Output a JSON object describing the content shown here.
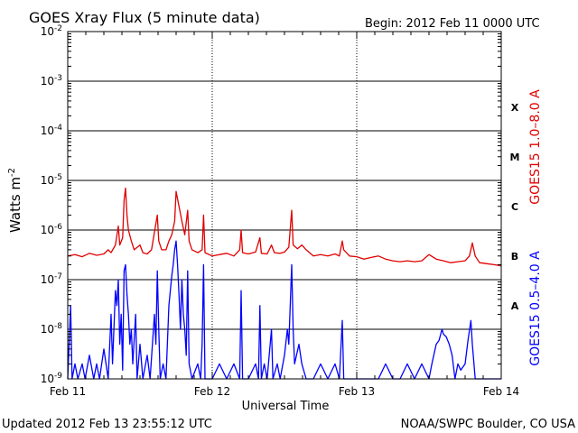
{
  "chart_data": {
    "type": "line",
    "title": "GOES Xray Flux (5 minute data)",
    "begin_label": "Begin:  2012 Feb 11 0000 UTC",
    "xlabel": "Universal Time",
    "ylabel_base": "Watts m",
    "ylabel_exp": "-2",
    "x_ticks": [
      "Feb 11",
      "Feb 12",
      "Feb 13",
      "Feb 14"
    ],
    "x_range_days": [
      0,
      3
    ],
    "ylim": [
      1e-09,
      0.01
    ],
    "y_scale": "log",
    "y_ticks": [
      {
        "base": "10",
        "exp": "-2",
        "value": 0.01
      },
      {
        "base": "10",
        "exp": "-3",
        "value": 0.001
      },
      {
        "base": "10",
        "exp": "-4",
        "value": 0.0001
      },
      {
        "base": "10",
        "exp": "-5",
        "value": 1e-05
      },
      {
        "base": "10",
        "exp": "-6",
        "value": 1e-06
      },
      {
        "base": "10",
        "exp": "-7",
        "value": 1e-07
      },
      {
        "base": "10",
        "exp": "-8",
        "value": 1e-08
      },
      {
        "base": "10",
        "exp": "-9",
        "value": 1e-09
      }
    ],
    "flare_classes": [
      {
        "label": "X",
        "value": 0.0003
      },
      {
        "label": "M",
        "value": 3e-05
      },
      {
        "label": "C",
        "value": 3e-06
      },
      {
        "label": "B",
        "value": 3e-07
      },
      {
        "label": "A",
        "value": 3e-08
      }
    ],
    "series": [
      {
        "name": "GOES15 1.0–8.0 A",
        "color": "#e00000",
        "points": [
          [
            0,
            3e-07
          ],
          [
            0.05,
            3.2e-07
          ],
          [
            0.1,
            2.9e-07
          ],
          [
            0.15,
            3.4e-07
          ],
          [
            0.2,
            3.1e-07
          ],
          [
            0.25,
            3.3e-07
          ],
          [
            0.28,
            4e-07
          ],
          [
            0.3,
            3.5e-07
          ],
          [
            0.33,
            5e-07
          ],
          [
            0.35,
            1.2e-06
          ],
          [
            0.36,
            5e-07
          ],
          [
            0.38,
            7e-07
          ],
          [
            0.39,
            4e-06
          ],
          [
            0.4,
            7e-06
          ],
          [
            0.41,
            2e-06
          ],
          [
            0.42,
            1e-06
          ],
          [
            0.44,
            6e-07
          ],
          [
            0.46,
            4e-07
          ],
          [
            0.5,
            5e-07
          ],
          [
            0.52,
            3.5e-07
          ],
          [
            0.55,
            3.3e-07
          ],
          [
            0.58,
            4e-07
          ],
          [
            0.6,
            9e-07
          ],
          [
            0.62,
            2e-06
          ],
          [
            0.63,
            6e-07
          ],
          [
            0.65,
            4e-07
          ],
          [
            0.68,
            4e-07
          ],
          [
            0.7,
            6e-07
          ],
          [
            0.72,
            8e-07
          ],
          [
            0.74,
            1.5e-06
          ],
          [
            0.75,
            6e-06
          ],
          [
            0.77,
            3e-06
          ],
          [
            0.79,
            1.5e-06
          ],
          [
            0.81,
            8e-07
          ],
          [
            0.83,
            2.5e-06
          ],
          [
            0.84,
            6e-07
          ],
          [
            0.86,
            4e-07
          ],
          [
            0.9,
            3.5e-07
          ],
          [
            0.93,
            4e-07
          ],
          [
            0.94,
            2e-06
          ],
          [
            0.95,
            3.5e-07
          ],
          [
            1.0,
            3e-07
          ],
          [
            1.05,
            3.2e-07
          ],
          [
            1.1,
            3.4e-07
          ],
          [
            1.15,
            3e-07
          ],
          [
            1.19,
            4e-07
          ],
          [
            1.2,
            1e-06
          ],
          [
            1.21,
            3.5e-07
          ],
          [
            1.25,
            3.3e-07
          ],
          [
            1.3,
            3.6e-07
          ],
          [
            1.33,
            7e-07
          ],
          [
            1.34,
            3.4e-07
          ],
          [
            1.38,
            3.3e-07
          ],
          [
            1.41,
            5e-07
          ],
          [
            1.43,
            3.5e-07
          ],
          [
            1.47,
            3.4e-07
          ],
          [
            1.5,
            3.6e-07
          ],
          [
            1.53,
            4.5e-07
          ],
          [
            1.55,
            2.5e-06
          ],
          [
            1.56,
            5e-07
          ],
          [
            1.59,
            4.2e-07
          ],
          [
            1.62,
            5e-07
          ],
          [
            1.65,
            4e-07
          ],
          [
            1.7,
            3e-07
          ],
          [
            1.75,
            3.2e-07
          ],
          [
            1.8,
            3e-07
          ],
          [
            1.85,
            3.3e-07
          ],
          [
            1.88,
            3e-07
          ],
          [
            1.9,
            6e-07
          ],
          [
            1.91,
            4e-07
          ],
          [
            1.95,
            3e-07
          ],
          [
            2.0,
            2.9e-07
          ],
          [
            2.05,
            2.6e-07
          ],
          [
            2.1,
            2.8e-07
          ],
          [
            2.15,
            3e-07
          ],
          [
            2.2,
            2.6e-07
          ],
          [
            2.25,
            2.4e-07
          ],
          [
            2.3,
            2.3e-07
          ],
          [
            2.35,
            2.4e-07
          ],
          [
            2.4,
            2.3e-07
          ],
          [
            2.45,
            2.4e-07
          ],
          [
            2.5,
            3.2e-07
          ],
          [
            2.55,
            2.6e-07
          ],
          [
            2.6,
            2.4e-07
          ],
          [
            2.65,
            2.2e-07
          ],
          [
            2.7,
            2.3e-07
          ],
          [
            2.75,
            2.4e-07
          ],
          [
            2.78,
            3e-07
          ],
          [
            2.8,
            5.5e-07
          ],
          [
            2.82,
            3e-07
          ],
          [
            2.85,
            2.2e-07
          ],
          [
            2.9,
            2.1e-07
          ],
          [
            2.95,
            2e-07
          ],
          [
            3.0,
            1.9e-07
          ]
        ]
      },
      {
        "name": "GOES15 0.5–4.0 A",
        "color": "#0000ff",
        "points": [
          [
            0,
            1e-09
          ],
          [
            0.02,
            3e-08
          ],
          [
            0.03,
            1e-09
          ],
          [
            0.05,
            2e-09
          ],
          [
            0.07,
            1e-09
          ],
          [
            0.1,
            2e-09
          ],
          [
            0.12,
            1e-09
          ],
          [
            0.15,
            3e-09
          ],
          [
            0.18,
            1e-09
          ],
          [
            0.2,
            2e-09
          ],
          [
            0.22,
            1e-09
          ],
          [
            0.25,
            4e-09
          ],
          [
            0.28,
            1e-09
          ],
          [
            0.3,
            2e-08
          ],
          [
            0.31,
            2e-09
          ],
          [
            0.33,
            6e-08
          ],
          [
            0.34,
            3e-08
          ],
          [
            0.35,
            1e-07
          ],
          [
            0.36,
            5e-09
          ],
          [
            0.37,
            2e-08
          ],
          [
            0.38,
            1.5e-09
          ],
          [
            0.39,
            1.5e-07
          ],
          [
            0.4,
            2e-07
          ],
          [
            0.41,
            5e-08
          ],
          [
            0.42,
            2e-08
          ],
          [
            0.43,
            5e-09
          ],
          [
            0.44,
            1e-08
          ],
          [
            0.45,
            2e-09
          ],
          [
            0.47,
            2e-08
          ],
          [
            0.48,
            1e-09
          ],
          [
            0.5,
            5e-09
          ],
          [
            0.52,
            1e-09
          ],
          [
            0.55,
            3e-09
          ],
          [
            0.57,
            1e-09
          ],
          [
            0.6,
            2e-08
          ],
          [
            0.61,
            5e-09
          ],
          [
            0.62,
            1.5e-07
          ],
          [
            0.63,
            1e-08
          ],
          [
            0.64,
            1e-09
          ],
          [
            0.66,
            2e-09
          ],
          [
            0.68,
            1e-09
          ],
          [
            0.7,
            3e-08
          ],
          [
            0.71,
            6e-08
          ],
          [
            0.72,
            1.2e-07
          ],
          [
            0.73,
            2e-07
          ],
          [
            0.74,
            4e-07
          ],
          [
            0.75,
            6e-07
          ],
          [
            0.76,
            2e-07
          ],
          [
            0.77,
            5e-08
          ],
          [
            0.78,
            1e-08
          ],
          [
            0.79,
            1e-07
          ],
          [
            0.8,
            2e-08
          ],
          [
            0.81,
            1e-08
          ],
          [
            0.82,
            3e-09
          ],
          [
            0.83,
            1.5e-07
          ],
          [
            0.84,
            2e-09
          ],
          [
            0.86,
            1e-09
          ],
          [
            0.9,
            2e-09
          ],
          [
            0.92,
            1e-09
          ],
          [
            0.93,
            5e-09
          ],
          [
            0.94,
            2e-07
          ],
          [
            0.95,
            1e-09
          ],
          [
            1.0,
            1e-09
          ],
          [
            1.05,
            2e-09
          ],
          [
            1.1,
            1e-09
          ],
          [
            1.15,
            2e-09
          ],
          [
            1.19,
            1e-09
          ],
          [
            1.2,
            6e-08
          ],
          [
            1.21,
            1e-09
          ],
          [
            1.25,
            1e-09
          ],
          [
            1.3,
            2e-09
          ],
          [
            1.32,
            1e-09
          ],
          [
            1.33,
            3e-08
          ],
          [
            1.34,
            1e-09
          ],
          [
            1.36,
            2e-09
          ],
          [
            1.38,
            1e-09
          ],
          [
            1.41,
            1e-08
          ],
          [
            1.42,
            1e-09
          ],
          [
            1.45,
            2e-09
          ],
          [
            1.47,
            1e-09
          ],
          [
            1.5,
            3e-09
          ],
          [
            1.52,
            1e-08
          ],
          [
            1.53,
            5e-09
          ],
          [
            1.55,
            2e-07
          ],
          [
            1.56,
            1e-08
          ],
          [
            1.57,
            2e-09
          ],
          [
            1.6,
            5e-09
          ],
          [
            1.62,
            2e-09
          ],
          [
            1.65,
            1e-09
          ],
          [
            1.7,
            1e-09
          ],
          [
            1.75,
            2e-09
          ],
          [
            1.8,
            1e-09
          ],
          [
            1.85,
            2e-09
          ],
          [
            1.88,
            1e-09
          ],
          [
            1.9,
            1.5e-08
          ],
          [
            1.91,
            1e-09
          ],
          [
            1.95,
            1e-09
          ],
          [
            2.0,
            1e-09
          ],
          [
            2.05,
            1e-09
          ],
          [
            2.1,
            1e-09
          ],
          [
            2.15,
            1e-09
          ],
          [
            2.2,
            2e-09
          ],
          [
            2.25,
            1e-09
          ],
          [
            2.3,
            1e-09
          ],
          [
            2.35,
            2e-09
          ],
          [
            2.4,
            1e-09
          ],
          [
            2.45,
            2e-09
          ],
          [
            2.5,
            1e-09
          ],
          [
            2.52,
            2e-09
          ],
          [
            2.55,
            5e-09
          ],
          [
            2.57,
            6e-09
          ],
          [
            2.59,
            1e-08
          ],
          [
            2.6,
            8e-09
          ],
          [
            2.62,
            7e-09
          ],
          [
            2.64,
            5e-09
          ],
          [
            2.66,
            3e-09
          ],
          [
            2.68,
            1e-09
          ],
          [
            2.7,
            2e-09
          ],
          [
            2.72,
            1.5e-09
          ],
          [
            2.75,
            2e-09
          ],
          [
            2.77,
            6e-09
          ],
          [
            2.79,
            1.5e-08
          ],
          [
            2.8,
            5e-09
          ],
          [
            2.82,
            1e-09
          ],
          [
            2.85,
            1e-09
          ],
          [
            2.9,
            1e-09
          ],
          [
            2.95,
            1e-09
          ],
          [
            3.0,
            1e-09
          ]
        ]
      }
    ],
    "grid": true,
    "legend": "right-vertical"
  },
  "footer": {
    "updated": "Updated 2012 Feb 13 23:55:12 UTC",
    "credit": "NOAA/SWPC Boulder, CO USA"
  }
}
